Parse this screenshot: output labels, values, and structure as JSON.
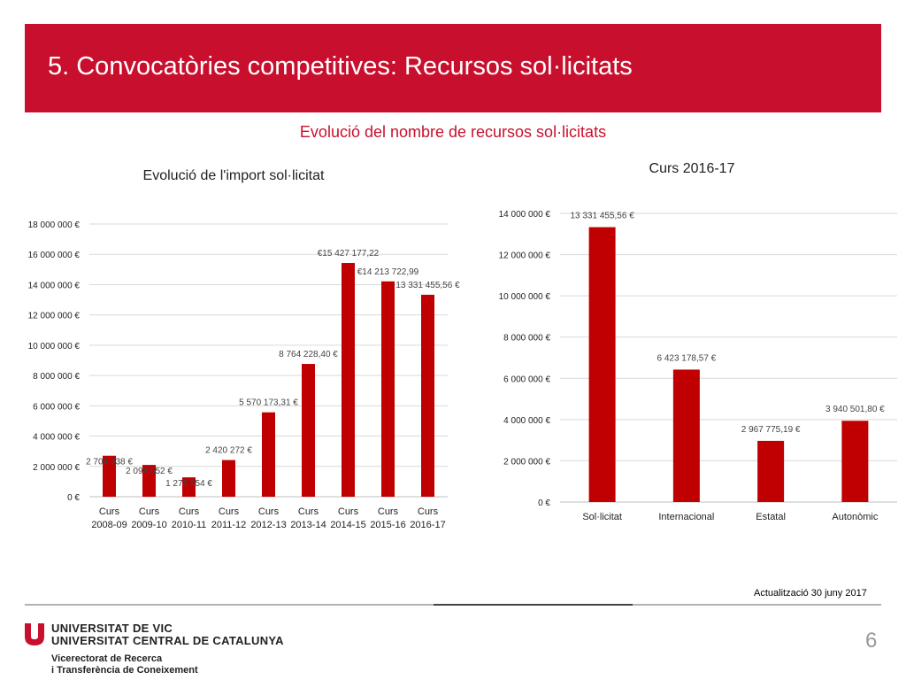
{
  "header": {
    "title": "5. Convocatòries competitives: Recursos sol·licitats",
    "subtitle": "Evolució del nombre de recursos sol·licitats",
    "accent_color": "#c8102e"
  },
  "chart_data": [
    {
      "type": "bar",
      "title": "Evolució de l'import sol·licitat",
      "categories": [
        [
          "Curs",
          "2008-09"
        ],
        [
          "Curs",
          "2009-10"
        ],
        [
          "Curs",
          "2010-11"
        ],
        [
          "Curs",
          "2011-12"
        ],
        [
          "Curs",
          "2012-13"
        ],
        [
          "Curs",
          "2013-14"
        ],
        [
          "Curs",
          "2014-15"
        ],
        [
          "Curs",
          "2015-16"
        ],
        [
          "Curs",
          "2016-17"
        ]
      ],
      "values": [
        2704338,
        2098652,
        1278554,
        2420272,
        5570173.31,
        8764228.4,
        15427177.22,
        14213722.99,
        13331455.56
      ],
      "data_labels": [
        "2 704 338 €",
        "2 098 652 €",
        "1 278 554 €",
        "2 420 272 €",
        "5 570 173,31 €",
        "8 764 228,40 €",
        "€15 427 177,22",
        "€14 213 722,99",
        "13 331 455,56 €"
      ],
      "ylim": [
        0,
        18000000
      ],
      "y_ticks": [
        0,
        2000000,
        4000000,
        6000000,
        8000000,
        10000000,
        12000000,
        14000000,
        16000000,
        18000000
      ],
      "y_tick_labels": [
        "0 €",
        "2 000 000 €",
        "4 000 000 €",
        "6 000 000 €",
        "8 000 000 €",
        "10 000 000 €",
        "12 000 000 €",
        "14 000 000 €",
        "16 000 000 €",
        "18 000 000 €"
      ],
      "grid": true,
      "bar_color": "#c00000"
    },
    {
      "type": "bar",
      "title": "Curs 2016-17",
      "categories": [
        [
          "Sol·licitat"
        ],
        [
          "Internacional"
        ],
        [
          "Estatal"
        ],
        [
          "Autonòmic"
        ]
      ],
      "values": [
        13331455.56,
        6423178.57,
        2967775.19,
        3940501.8
      ],
      "data_labels": [
        "13 331 455,56 €",
        "6 423 178,57 €",
        "2 967 775,19 €",
        "3 940 501,80 €"
      ],
      "ylim": [
        0,
        14000000
      ],
      "y_ticks": [
        0,
        2000000,
        4000000,
        6000000,
        8000000,
        10000000,
        12000000,
        14000000
      ],
      "y_tick_labels": [
        "0 €",
        "2 000 000 €",
        "4 000 000 €",
        "6 000 000 €",
        "8 000 000 €",
        "10 000 000 €",
        "12 000 000 €",
        "14 000 000 €"
      ],
      "grid": true,
      "bar_color": "#c00000"
    }
  ],
  "footer": {
    "update": "Actualització 30 juny 2017",
    "university_line1": "UNIVERSITAT DE VIC",
    "university_line2": "UNIVERSITAT CENTRAL DE CATALUNYA",
    "vicerectorat_line1": "Vicerectorat de Recerca",
    "vicerectorat_line2": "i Transferència de Coneixement",
    "page_number": "6"
  }
}
